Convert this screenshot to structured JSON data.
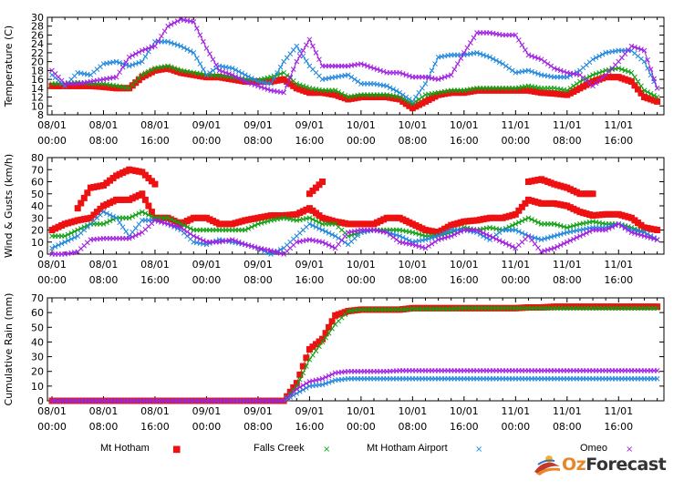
{
  "chart_data": [
    {
      "type": "line",
      "ylabel": "Temperature (C)",
      "ylim": [
        8,
        30
      ],
      "yticks": [
        8,
        10,
        12,
        14,
        16,
        18,
        20,
        22,
        24,
        26,
        28,
        30
      ],
      "x_ticks": [
        {
          "date": "08/01",
          "time": "00:00"
        },
        {
          "date": "08/01",
          "time": "08:00"
        },
        {
          "date": "08/01",
          "time": "16:00"
        },
        {
          "date": "09/01",
          "time": "00:00"
        },
        {
          "date": "09/01",
          "time": "08:00"
        },
        {
          "date": "09/01",
          "time": "16:00"
        },
        {
          "date": "10/01",
          "time": "00:00"
        },
        {
          "date": "10/01",
          "time": "08:00"
        },
        {
          "date": "10/01",
          "time": "16:00"
        },
        {
          "date": "11/01",
          "time": "00:00"
        },
        {
          "date": "11/01",
          "time": "08:00"
        },
        {
          "date": "11/01",
          "time": "16:00"
        }
      ],
      "series": [
        {
          "name": "Mt Hotham",
          "color": "#ee1111",
          "marker": "square",
          "values": [
            14.5,
            14.5,
            14.5,
            14.5,
            14.3,
            14,
            14,
            16.5,
            18,
            18.5,
            17.5,
            17,
            16.5,
            16.5,
            16,
            15.5,
            15.5,
            15.5,
            16,
            14,
            13,
            13,
            12.5,
            11.5,
            12,
            12,
            12,
            11.5,
            9.5,
            11,
            12.5,
            13,
            13,
            13.5,
            13.5,
            13.5,
            13.5,
            13.5,
            13,
            12.8,
            12.5,
            14,
            15.5,
            16.5,
            16.5,
            15.5,
            12,
            11
          ]
        },
        {
          "name": "Falls Creek",
          "color": "#11a011",
          "marker": "x",
          "values": [
            15,
            15,
            15.3,
            15,
            15,
            14.5,
            14,
            17,
            18.5,
            19,
            18,
            17.5,
            17,
            16.8,
            16.5,
            16,
            15.8,
            16.5,
            17.5,
            15,
            14,
            13.5,
            13.5,
            12,
            12.5,
            12.5,
            12.5,
            12,
            10.5,
            12.5,
            13,
            13.5,
            13.5,
            14,
            14,
            14,
            14,
            14.5,
            14,
            14,
            13.5,
            15.5,
            17,
            18,
            18.5,
            17.5,
            13.5,
            12
          ]
        },
        {
          "name": "Mt Hotham Airport",
          "color": "#2288dd",
          "marker": "x",
          "values": [
            17,
            14.5,
            17.5,
            17,
            19.5,
            20,
            19,
            20,
            24.5,
            24.5,
            23.5,
            22,
            17,
            19,
            18.5,
            17,
            15.5,
            15,
            20,
            23.5,
            19,
            16,
            16.5,
            17,
            15,
            15,
            14.5,
            13,
            11,
            15,
            21,
            21.5,
            21.5,
            22,
            21,
            19.5,
            17.5,
            18,
            17,
            16.5,
            16.5,
            18,
            20.5,
            22,
            22.5,
            22.5,
            20,
            14
          ]
        },
        {
          "name": "Omeo",
          "color": "#a020e0",
          "marker": "x",
          "values": [
            18,
            15,
            15,
            15.5,
            16,
            16.5,
            21,
            22.5,
            23.5,
            28,
            29.5,
            29,
            23,
            18,
            17,
            15.5,
            14.5,
            13.5,
            13,
            20,
            25,
            19,
            19,
            19,
            19.5,
            18.5,
            17.5,
            17.5,
            16.5,
            16.5,
            16,
            17,
            22,
            26.5,
            26.5,
            26,
            26,
            21.5,
            20.5,
            18.5,
            17.5,
            17,
            14.5,
            17,
            20,
            23.5,
            22.5,
            14
          ]
        }
      ]
    },
    {
      "type": "scatter",
      "ylabel": "Wind & Gusts (km/h)",
      "ylim": [
        0,
        80
      ],
      "yticks": [
        0,
        10,
        20,
        30,
        40,
        50,
        60,
        70,
        80
      ],
      "x_ticks": [
        {
          "date": "08/01",
          "time": "00:00"
        },
        {
          "date": "08/01",
          "time": "08:00"
        },
        {
          "date": "08/01",
          "time": "16:00"
        },
        {
          "date": "09/01",
          "time": "00:00"
        },
        {
          "date": "09/01",
          "time": "08:00"
        },
        {
          "date": "09/01",
          "time": "16:00"
        },
        {
          "date": "10/01",
          "time": "00:00"
        },
        {
          "date": "10/01",
          "time": "08:00"
        },
        {
          "date": "10/01",
          "time": "16:00"
        },
        {
          "date": "11/01",
          "time": "00:00"
        },
        {
          "date": "11/01",
          "time": "08:00"
        },
        {
          "date": "11/01",
          "time": "16:00"
        }
      ],
      "series": [
        {
          "name": "Mt Hotham",
          "color": "#ee1111",
          "marker": "square",
          "values": [
            20,
            25,
            28,
            30,
            40,
            45,
            45,
            50,
            30,
            30,
            25,
            30,
            30,
            25,
            25,
            28,
            30,
            32,
            32,
            33,
            38,
            30,
            27,
            25,
            25,
            25,
            30,
            30,
            25,
            20,
            18,
            24,
            27,
            28,
            30,
            30,
            33,
            45,
            42,
            42,
            40,
            35,
            32,
            33,
            33,
            30,
            22,
            20
          ]
        },
        {
          "name": "Mt Hotham",
          "color": "#ee1111",
          "marker": "square",
          "values": [
            null,
            null,
            38,
            55,
            57,
            65,
            70,
            68,
            58,
            null,
            null,
            null,
            null,
            null,
            null,
            null,
            null,
            null,
            null,
            null,
            50,
            60,
            null,
            null,
            null,
            null,
            null,
            null,
            null,
            null,
            null,
            null,
            null,
            null,
            null,
            null,
            null,
            60,
            62,
            58,
            55,
            50,
            50,
            null,
            null,
            null,
            null,
            null
          ]
        },
        {
          "name": "Falls Creek",
          "color": "#11a011",
          "marker": "x",
          "values": [
            15,
            15,
            20,
            25,
            25,
            30,
            30,
            35,
            30,
            30,
            25,
            20,
            20,
            20,
            20,
            20,
            25,
            28,
            30,
            28,
            30,
            25,
            25,
            15,
            18,
            20,
            20,
            20,
            18,
            15,
            15,
            18,
            22,
            20,
            22,
            20,
            25,
            30,
            25,
            25,
            22,
            25,
            27,
            25,
            25,
            22,
            18,
            12
          ]
        },
        {
          "name": "Mt Hotham Airport",
          "color": "#2288dd",
          "marker": "x",
          "values": [
            5,
            10,
            15,
            25,
            35,
            30,
            15,
            28,
            28,
            25,
            20,
            10,
            8,
            12,
            10,
            8,
            5,
            0,
            5,
            15,
            25,
            20,
            15,
            8,
            18,
            20,
            18,
            15,
            10,
            12,
            15,
            20,
            20,
            18,
            12,
            20,
            20,
            15,
            12,
            15,
            18,
            20,
            22,
            22,
            25,
            20,
            18,
            12
          ]
        },
        {
          "name": "Omeo",
          "color": "#a020e0",
          "marker": "x",
          "values": [
            0,
            0,
            2,
            12,
            13,
            13,
            13,
            18,
            28,
            25,
            22,
            15,
            10,
            10,
            12,
            8,
            5,
            3,
            0,
            10,
            12,
            10,
            5,
            18,
            20,
            20,
            18,
            10,
            8,
            5,
            12,
            15,
            20,
            20,
            15,
            10,
            5,
            15,
            2,
            5,
            10,
            15,
            20,
            20,
            25,
            18,
            15,
            12
          ]
        }
      ]
    },
    {
      "type": "line",
      "ylabel": "Cumulative Rain (mm)",
      "ylim": [
        0,
        70
      ],
      "yticks": [
        0,
        10,
        20,
        30,
        40,
        50,
        60,
        70
      ],
      "x_ticks": [
        {
          "date": "08/01",
          "time": "00:00"
        },
        {
          "date": "08/01",
          "time": "08:00"
        },
        {
          "date": "08/01",
          "time": "16:00"
        },
        {
          "date": "09/01",
          "time": "00:00"
        },
        {
          "date": "09/01",
          "time": "08:00"
        },
        {
          "date": "09/01",
          "time": "16:00"
        },
        {
          "date": "10/01",
          "time": "00:00"
        },
        {
          "date": "10/01",
          "time": "08:00"
        },
        {
          "date": "10/01",
          "time": "16:00"
        },
        {
          "date": "11/01",
          "time": "00:00"
        },
        {
          "date": "11/01",
          "time": "08:00"
        },
        {
          "date": "11/01",
          "time": "16:00"
        }
      ],
      "series": [
        {
          "name": "Mt Hotham",
          "color": "#ee1111",
          "marker": "square",
          "values": [
            0,
            0,
            0,
            0,
            0,
            0,
            0,
            0,
            0,
            0,
            0,
            0,
            0,
            0,
            0,
            0,
            0,
            0,
            0,
            12,
            35,
            42,
            58,
            61,
            62,
            62,
            62,
            62,
            63,
            63,
            63,
            63,
            63,
            63,
            63,
            63,
            63,
            63.5,
            63.5,
            64,
            64,
            64,
            64,
            64,
            64,
            64,
            64,
            64
          ]
        },
        {
          "name": "Falls Creek",
          "color": "#11a011",
          "marker": "x",
          "values": [
            0,
            0,
            0,
            0,
            0,
            0,
            0,
            0,
            0,
            0,
            0,
            0,
            0,
            0,
            0,
            0,
            0,
            0,
            0,
            10,
            28,
            40,
            52,
            61,
            62,
            62,
            62,
            62,
            62.5,
            62.5,
            62.5,
            62.5,
            63,
            63,
            63,
            63,
            63,
            63,
            63,
            63,
            63,
            63,
            63,
            63,
            63,
            63,
            63,
            63
          ]
        },
        {
          "name": "Mt Hotham Airport",
          "color": "#2288dd",
          "marker": "x",
          "values": [
            0,
            0,
            0,
            0,
            0,
            0,
            0,
            0,
            0,
            0,
            0,
            0,
            0,
            0,
            0,
            0,
            0,
            0,
            0,
            5,
            10,
            11,
            14,
            15,
            15,
            15,
            15,
            15,
            15,
            15,
            15,
            15,
            15,
            15,
            15,
            15,
            15,
            15,
            15,
            15,
            15,
            15,
            15,
            15,
            15,
            15,
            15,
            15
          ]
        },
        {
          "name": "Omeo",
          "color": "#a020e0",
          "marker": "x",
          "values": [
            0,
            0,
            0,
            0,
            0,
            0,
            0,
            0,
            0,
            0,
            0,
            0,
            0,
            0,
            0,
            0,
            0,
            0,
            0,
            8,
            13,
            15,
            19,
            20,
            20,
            20,
            20,
            20.5,
            20.5,
            20.5,
            20.5,
            20.5,
            20.5,
            20.5,
            20.5,
            20.5,
            20.5,
            20.5,
            20.5,
            20.5,
            20.5,
            20.5,
            20.5,
            20.5,
            20.5,
            20.5,
            20.5,
            20.5
          ]
        }
      ]
    }
  ],
  "legend": [
    {
      "name": "Mt Hotham",
      "color": "#ee1111",
      "marker": "■"
    },
    {
      "name": "Falls Creek",
      "color": "#11a011",
      "marker": "×"
    },
    {
      "name": "Mt Hotham Airport",
      "color": "#2288dd",
      "marker": "×"
    },
    {
      "name": "Omeo",
      "color": "#a020e0",
      "marker": "×"
    }
  ],
  "logo": {
    "part1": "Oz",
    "part2": "Forecast"
  }
}
